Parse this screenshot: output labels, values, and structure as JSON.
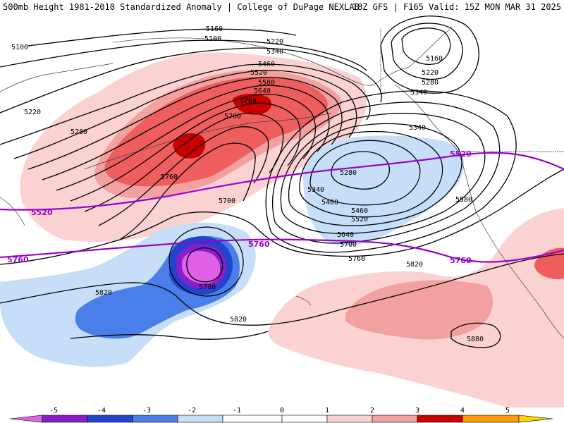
{
  "header": {
    "left": "500mb Height 1981-2010 Standardized Anomaly | College of DuPage NEXLAB",
    "right": "18Z GFS | F165 Valid: 15Z MON MAR 31 2025"
  },
  "colors": {
    "neg5": "#e060e8",
    "neg4": "#8a1ecc",
    "neg3": "#2244cc",
    "neg2": "#4a7ee8",
    "neg1": "#c6def8",
    "pos1": "#fbd2d2",
    "pos2": "#f3a0a0",
    "pos3": "#ef5e5e",
    "pos4": "#c80000",
    "pos5": "#ff9a00",
    "contour": "#000000",
    "reference": "#9900cc"
  },
  "contour_labels": [
    "5100",
    "5160",
    "5100",
    "5220",
    "5340",
    "5460",
    "5520",
    "5580",
    "5640",
    "5700",
    "5760",
    "5220",
    "5280",
    "5760",
    "5700",
    "5160",
    "5220",
    "5280",
    "5340",
    "5340",
    "5280",
    "5340",
    "5400",
    "5460",
    "5520",
    "5640",
    "5700",
    "5760",
    "5580",
    "5820",
    "5820",
    "5700",
    "5820",
    "5880"
  ],
  "reference_labels": [
    "5520",
    "5760",
    "5520",
    "5760"
  ],
  "legend": {
    "ticks": [
      "-5",
      "-4",
      "-3",
      "-2",
      "-1",
      "0",
      "1",
      "2",
      "3",
      "4",
      "5"
    ]
  }
}
